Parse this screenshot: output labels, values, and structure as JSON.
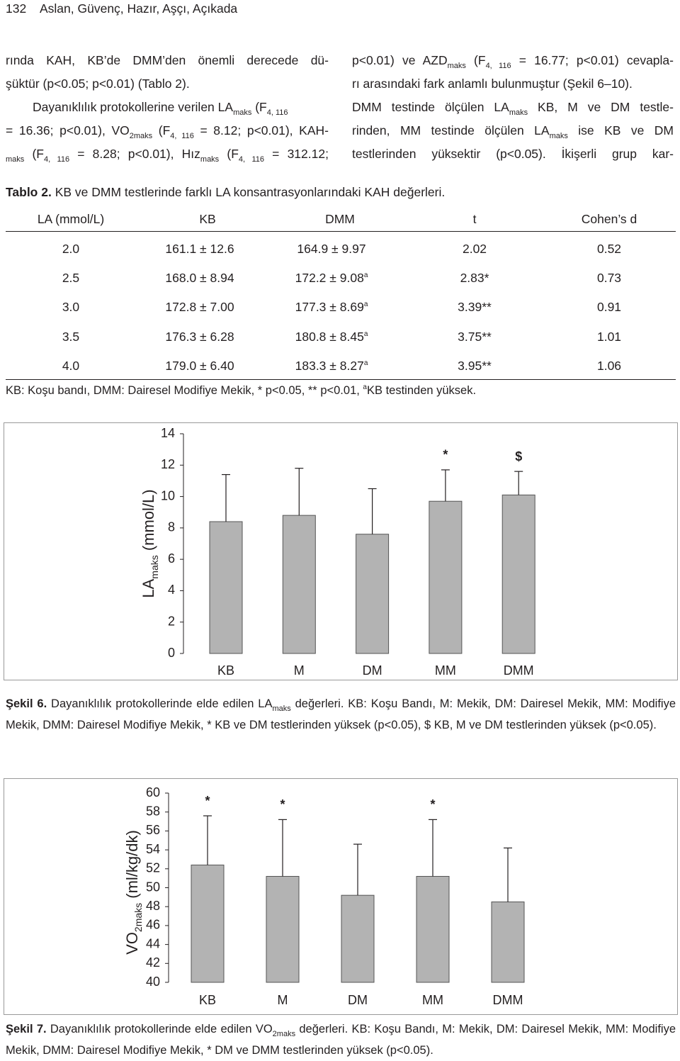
{
  "header": {
    "page_number": "132",
    "authors": "Aslan, Güvenç, Hazır, Aşçı, Açıkada"
  },
  "body": {
    "left": [
      [
        "rında KAH, KB’de DMM’den önemli derecede dü-"
      ],
      [
        "şüktür (p<0.05; p<0.01) (Tablo 2)."
      ],
      [
        "Dayanıklılık protokollerine verilen LA",
        {
          "sub": "maks"
        },
        " (F",
        {
          "sub": "4, 116"
        }
      ],
      [
        "= 16.36; p<0.01), VO",
        {
          "sub": "2maks"
        },
        " (F",
        {
          "sub": "4, 116"
        },
        " = 8.12; p<0.01), KAH-"
      ],
      [
        {
          "sub": "maks"
        },
        " (F",
        {
          "sub": "4, 116"
        },
        " = 8.28; p<0.01), Hız",
        {
          "sub": "maks"
        },
        " (F",
        {
          "sub": "4, 116"
        },
        " = 312.12;"
      ]
    ],
    "right": [
      [
        "p<0.01) ve AZD",
        {
          "sub": "maks"
        },
        " (F",
        {
          "sub": "4, 116"
        },
        " = 16.77; p<0.01) cevapla-"
      ],
      [
        "rı arasındaki fark anlamlı bulunmuştur (Şekil 6–10)."
      ],
      [
        "DMM testinde ölçülen LA",
        {
          "sub": "maks"
        },
        " KB, M ve DM testle-"
      ],
      [
        "rinden, MM testinde ölçülen LA",
        {
          "sub": "maks"
        },
        " ise KB ve DM"
      ],
      [
        "testlerinden yüksektir (p<0.05). İkişerli grup kar-"
      ]
    ]
  },
  "table": {
    "label": "Tablo 2.",
    "caption": " KB ve DMM testlerinde farklı LA konsantrasyonlarındaki KAH değerleri.",
    "columns": [
      "LA (mmol/L)",
      "KB",
      "DMM",
      "t",
      "Cohen’s d"
    ],
    "rows": [
      [
        "2.0",
        "161.1 ± 12.6",
        [
          "164.9 ± 9.97"
        ],
        "2.02",
        "0.52"
      ],
      [
        "2.5",
        "168.0 ± 8.94",
        [
          "172.2 ± 9.08",
          {
            "sup": "a"
          }
        ],
        "2.83*",
        "0.73"
      ],
      [
        "3.0",
        "172.8 ± 7.00",
        [
          "177.3 ± 8.69",
          {
            "sup": "a"
          }
        ],
        "3.39**",
        "0.91"
      ],
      [
        "3.5",
        "176.3 ± 6.28",
        [
          "180.8 ± 8.45",
          {
            "sup": "a"
          }
        ],
        "3.75**",
        "1.01"
      ],
      [
        "4.0",
        "179.0 ± 6.40",
        [
          "183.3 ± 8.27",
          {
            "sup": "a"
          }
        ],
        "3.95**",
        "1.06"
      ]
    ],
    "note": [
      "KB: Koşu bandı, DMM: Dairesel Modifiye Mekik, * p<0.05, ** p<0.01, ",
      {
        "sup": "a"
      },
      "KB testinden yüksek."
    ]
  },
  "chart_data": [
    {
      "type": "bar",
      "ylabel": [
        "LA",
        {
          "sub": "maks"
        },
        " (mmol/L)"
      ],
      "categories": [
        "KB",
        "M",
        "DM",
        "MM",
        "DMM"
      ],
      "values": [
        8.4,
        8.8,
        7.6,
        9.7,
        10.1
      ],
      "errors": [
        3.0,
        3.0,
        2.9,
        2.0,
        1.5
      ],
      "markers": [
        null,
        null,
        null,
        "*",
        "$"
      ],
      "color": "#b3b3b3",
      "ylim": [
        0,
        14
      ],
      "yticks": [
        0,
        2,
        4,
        6,
        8,
        10,
        12,
        14
      ],
      "label": "Şekil 6.",
      "caption": [
        " Dayanıklılık protokollerinde elde edilen LA",
        {
          "sub": "maks"
        },
        " değerleri. KB: Koşu Bandı, M: Mekik, DM: Dairesel Mekik, MM: Modifiye Mekik, DMM: Dairesel Modifiye Mekik, * KB ve DM testlerinden yüksek (p<0.05), $ KB, M ve DM testlerinden yüksek (p<0.05)."
      ]
    },
    {
      "type": "bar",
      "ylabel": [
        "VO",
        {
          "sub": "2maks"
        },
        " (ml/kg/dk)"
      ],
      "categories": [
        "KB",
        "M",
        "DM",
        "MM",
        "DMM"
      ],
      "values": [
        52.4,
        51.2,
        49.2,
        51.2,
        48.5
      ],
      "errors": [
        5.2,
        6.0,
        5.4,
        6.0,
        5.7
      ],
      "markers": [
        "*",
        "*",
        null,
        "*",
        null
      ],
      "color": "#b3b3b3",
      "ylim": [
        40,
        60
      ],
      "yticks": [
        40,
        42,
        44,
        46,
        48,
        50,
        52,
        54,
        56,
        58,
        60
      ],
      "label": "Şekil 7.",
      "caption": [
        " Dayanıklılık protokollerinde elde edilen VO",
        {
          "sub": "2maks"
        },
        " değerleri. KB: Koşu Bandı, M: Mekik, DM: Dairesel Mekik, MM: Modifiye Mekik, DMM: Dairesel Modifiye Mekik, * DM ve DMM testlerinden yüksek (p<0.05)."
      ]
    }
  ]
}
